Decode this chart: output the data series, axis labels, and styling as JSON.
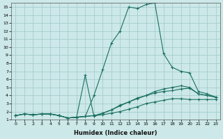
{
  "xlabel": "Humidex (Indice chaleur)",
  "xlim": [
    -0.5,
    23.5
  ],
  "ylim": [
    1,
    15.5
  ],
  "xticks": [
    0,
    1,
    2,
    3,
    4,
    5,
    6,
    7,
    8,
    9,
    10,
    11,
    12,
    13,
    14,
    15,
    16,
    17,
    18,
    19,
    20,
    21,
    22,
    23
  ],
  "yticks": [
    1,
    2,
    3,
    4,
    5,
    6,
    7,
    8,
    9,
    10,
    11,
    12,
    13,
    14,
    15
  ],
  "bg_color": "#cce8e8",
  "grid_color": "#a0c8c8",
  "line_color": "#1a7060",
  "line1_x": [
    0,
    1,
    2,
    3,
    4,
    5,
    6,
    7,
    8,
    9,
    10,
    11,
    12,
    13,
    14,
    15,
    16,
    17,
    18,
    19,
    20,
    21,
    22,
    23
  ],
  "line1_y": [
    1.5,
    1.7,
    1.6,
    1.7,
    1.7,
    1.5,
    1.2,
    1.3,
    1.4,
    1.5,
    1.6,
    1.8,
    2.0,
    2.3,
    2.6,
    3.0,
    3.2,
    3.4,
    3.6,
    3.6,
    3.5,
    3.5,
    3.5,
    3.5
  ],
  "line2_x": [
    0,
    1,
    2,
    3,
    4,
    5,
    6,
    7,
    8,
    9,
    10,
    11,
    12,
    13,
    14,
    15,
    16,
    17,
    18,
    19,
    20,
    21,
    22,
    23
  ],
  "line2_y": [
    1.5,
    1.7,
    1.6,
    1.7,
    1.7,
    1.5,
    1.2,
    1.3,
    1.4,
    1.5,
    1.8,
    2.2,
    2.7,
    3.2,
    3.7,
    4.0,
    4.3,
    4.5,
    4.6,
    4.8,
    4.9,
    4.2,
    4.0,
    3.8
  ],
  "line3_x": [
    0,
    1,
    2,
    3,
    4,
    5,
    6,
    7,
    8,
    9,
    10,
    11,
    12,
    13,
    14,
    15,
    16,
    17,
    18,
    19,
    20,
    21,
    22,
    23
  ],
  "line3_y": [
    1.5,
    1.7,
    1.6,
    1.7,
    1.7,
    1.5,
    1.2,
    1.3,
    6.5,
    1.4,
    1.8,
    2.2,
    2.8,
    3.2,
    3.6,
    4.0,
    4.5,
    4.8,
    5.0,
    5.2,
    5.0,
    4.2,
    4.0,
    3.8
  ],
  "line4_x": [
    0,
    1,
    2,
    3,
    4,
    5,
    6,
    7,
    8,
    9,
    10,
    11,
    12,
    13,
    14,
    15,
    16,
    17,
    18,
    19,
    20,
    21,
    22,
    23
  ],
  "line4_y": [
    1.5,
    1.7,
    1.6,
    1.7,
    1.7,
    1.5,
    1.2,
    1.3,
    1.4,
    4.0,
    7.2,
    10.5,
    12.0,
    15.0,
    14.8,
    15.3,
    15.5,
    9.2,
    7.5,
    7.0,
    6.8,
    4.5,
    4.2,
    3.8
  ]
}
